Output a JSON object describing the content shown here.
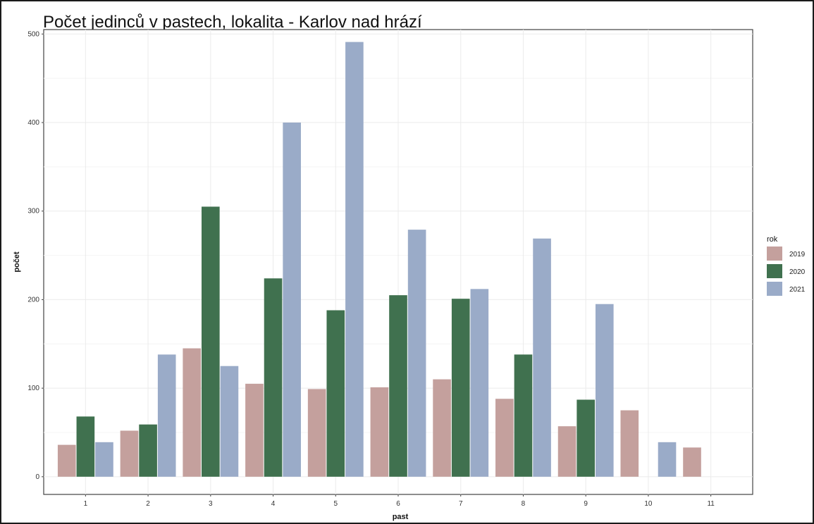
{
  "chart_data": {
    "type": "bar",
    "title": "Počet jedinců v pastech, lokalita - Karlov nad hrází",
    "xlabel": "past",
    "ylabel": "počet",
    "categories": [
      "1",
      "2",
      "3",
      "4",
      "5",
      "6",
      "7",
      "8",
      "9",
      "10",
      "11"
    ],
    "ylim": [
      -20,
      505
    ],
    "yticks": [
      0,
      100,
      200,
      300,
      400,
      500
    ],
    "grid": true,
    "legend_title": "rok",
    "legend_position": "right",
    "series": [
      {
        "name": "2019",
        "color": "#c4a09d",
        "values": [
          36,
          52,
          145,
          105,
          99,
          101,
          110,
          88,
          57,
          75,
          33
        ]
      },
      {
        "name": "2020",
        "color": "#40714f",
        "values": [
          68,
          59,
          305,
          224,
          188,
          205,
          201,
          138,
          87,
          null,
          null
        ]
      },
      {
        "name": "2021",
        "color": "#9aabc8",
        "values": [
          39,
          138,
          125,
          400,
          491,
          279,
          212,
          269,
          195,
          39,
          null
        ]
      }
    ]
  }
}
